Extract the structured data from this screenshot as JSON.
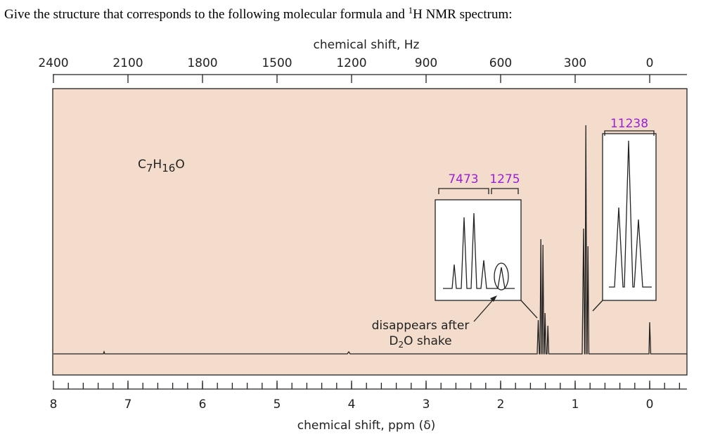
{
  "question": {
    "before": "Give the structure that corresponds to the following molecular formula and ",
    "sup": "1",
    "after": "H NMR spectrum:"
  },
  "top_axis": {
    "label": "chemical shift, Hz",
    "ticks": [
      2400,
      2100,
      1800,
      1500,
      1200,
      900,
      600,
      300,
      0
    ]
  },
  "bottom_axis": {
    "label": "chemical shift, ppm (δ)",
    "ticks": [
      8,
      7,
      6,
      5,
      4,
      3,
      2,
      1,
      0
    ]
  },
  "formula": [
    "C",
    "7",
    "H",
    "16",
    "O"
  ],
  "integrals": [
    "7473",
    "1275",
    "11238"
  ],
  "annotation": {
    "line1": "disappears after",
    "line2_a": "D",
    "line2_sub": "2",
    "line2_b": "O shake"
  }
}
